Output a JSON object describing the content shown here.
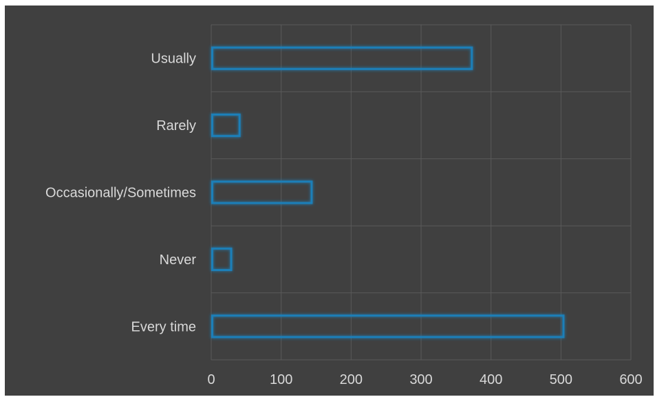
{
  "chart_data": {
    "type": "bar",
    "orientation": "horizontal",
    "categories": [
      "Every time",
      "Never",
      "Occasionally/Sometimes",
      "Rarely",
      "Usually"
    ],
    "values": [
      505,
      30,
      145,
      42,
      374
    ],
    "xlim": [
      0,
      600
    ],
    "x_ticks": [
      "0",
      "100",
      "200",
      "300",
      "400",
      "500",
      "600"
    ],
    "grid": true,
    "legend": "none",
    "colors": {
      "background": "#404040",
      "bar_outline": "#1f7fb8",
      "bar_glow": "#1b6fa8",
      "gridline": "#5a5a5a",
      "text": "#d9d9d9"
    }
  }
}
